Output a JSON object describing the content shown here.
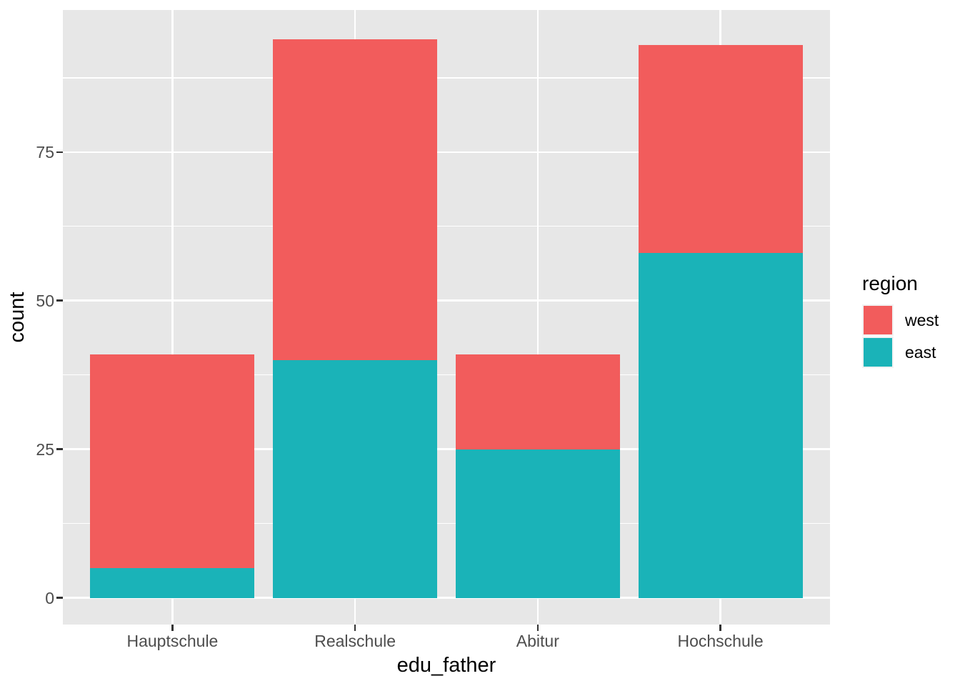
{
  "chart_data": {
    "type": "bar",
    "stacked": true,
    "title": "",
    "xlabel": "edu_father",
    "ylabel": "count",
    "categories": [
      "Hauptschule",
      "Realschule",
      "Abitur",
      "Hochschule"
    ],
    "series": [
      {
        "name": "west",
        "color": "#F25C5C",
        "values": [
          36,
          54,
          16,
          35
        ]
      },
      {
        "name": "east",
        "color": "#1AB3B8",
        "values": [
          5,
          40,
          25,
          58
        ]
      }
    ],
    "stack_bottom_to_top": [
      "east",
      "west"
    ],
    "totals": [
      41,
      94,
      41,
      93
    ],
    "y_tick_labels": [
      "0",
      "25",
      "50",
      "75"
    ],
    "y_tick_values": [
      0,
      25,
      50,
      75
    ],
    "y_minor_values": [
      12.5,
      37.5,
      62.5,
      87.5
    ],
    "ylim": [
      -4.5,
      98.9
    ],
    "grid": true,
    "legend": {
      "title": "region",
      "position": "right",
      "entries": [
        {
          "label": "west",
          "color": "#F25C5C"
        },
        {
          "label": "east",
          "color": "#1AB3B8"
        }
      ]
    },
    "theme": {
      "panel_bg": "#E7E7E7",
      "grid_color": "#FFFFFF",
      "tick_color": "#333333",
      "tick_label_color": "#4D4D4D",
      "axis_title_color": "#000000",
      "figure_bg": "#FFFFFF"
    }
  }
}
